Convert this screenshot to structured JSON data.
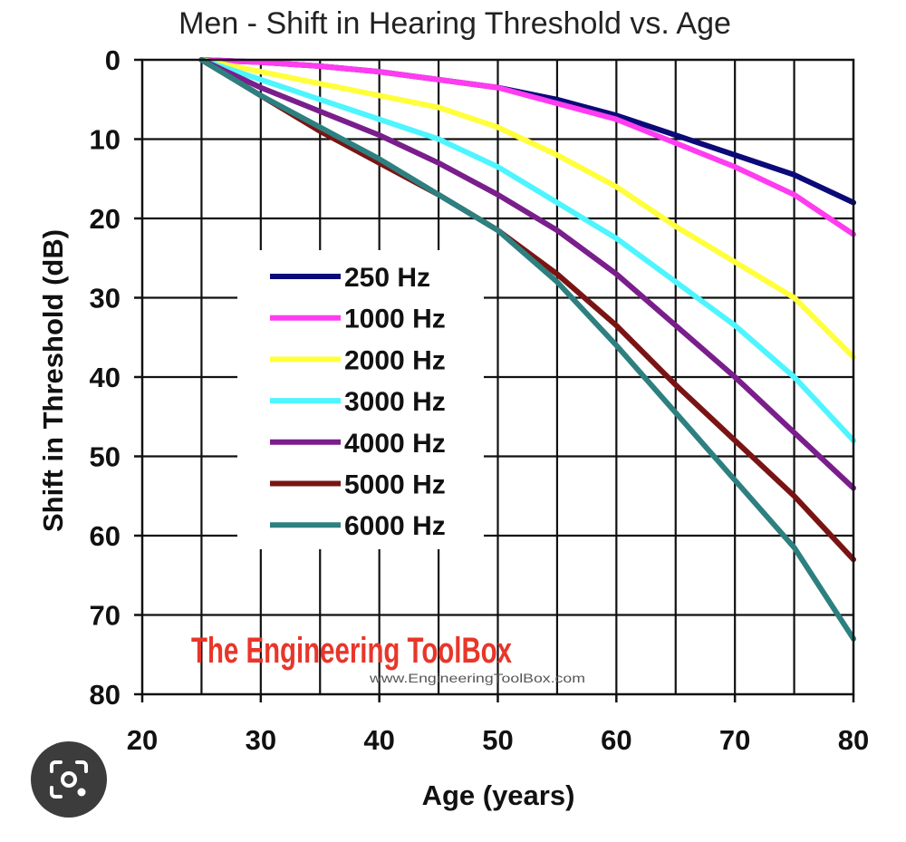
{
  "chart_data": {
    "type": "line",
    "title": "Men - Shift in Hearing Threshold vs. Age",
    "xlabel": "Age (years)",
    "ylabel": "Shift in Threshold (dB)",
    "xlim": [
      20,
      80
    ],
    "ylim": [
      0,
      80
    ],
    "y_inverted": true,
    "x_ticks": [
      "20",
      "30",
      "40",
      "50",
      "60",
      "70",
      "80"
    ],
    "y_ticks": [
      "0",
      "10",
      "20",
      "30",
      "40",
      "50",
      "60",
      "70",
      "80"
    ],
    "grid": true,
    "legend_position": "center-left",
    "series": [
      {
        "name": "250 Hz",
        "color": "#0a0a78",
        "x": [
          25,
          30,
          35,
          40,
          45,
          50,
          55,
          60,
          65,
          70,
          75,
          80
        ],
        "y": [
          0,
          0.3,
          0.8,
          1.5,
          2.5,
          3.5,
          5,
          7,
          9.5,
          12,
          14.5,
          18
        ]
      },
      {
        "name": "1000 Hz",
        "color": "#ff3cf0",
        "x": [
          25,
          30,
          35,
          40,
          45,
          50,
          55,
          60,
          65,
          70,
          75,
          80
        ],
        "y": [
          0,
          0.3,
          0.8,
          1.5,
          2.5,
          3.5,
          5.5,
          7.5,
          10.5,
          13.5,
          17,
          22
        ]
      },
      {
        "name": "2000 Hz",
        "color": "#ffff3c",
        "x": [
          25,
          30,
          35,
          40,
          45,
          50,
          55,
          60,
          65,
          70,
          75,
          80
        ],
        "y": [
          0,
          1.5,
          3,
          4.5,
          6,
          8.5,
          12,
          16,
          21,
          25.5,
          30,
          37.5
        ]
      },
      {
        "name": "3000 Hz",
        "color": "#4ef5ff",
        "x": [
          25,
          30,
          35,
          40,
          45,
          50,
          55,
          60,
          65,
          70,
          75,
          80
        ],
        "y": [
          0,
          2.5,
          5,
          7.5,
          10,
          13.5,
          18,
          22.5,
          28,
          33.5,
          40,
          48
        ]
      },
      {
        "name": "4000 Hz",
        "color": "#7a1e8c",
        "x": [
          25,
          30,
          35,
          40,
          45,
          50,
          55,
          60,
          65,
          70,
          75,
          80
        ],
        "y": [
          0,
          3.5,
          6.5,
          9.5,
          13,
          17,
          21.5,
          27,
          33.5,
          40,
          47,
          54
        ]
      },
      {
        "name": "5000 Hz",
        "color": "#7a1414",
        "x": [
          25,
          30,
          35,
          40,
          45,
          50,
          55,
          60,
          65,
          70,
          75,
          80
        ],
        "y": [
          0,
          4.5,
          9,
          13,
          17,
          21.5,
          27,
          33.5,
          41,
          48,
          55,
          63
        ]
      },
      {
        "name": "6000 Hz",
        "color": "#2e8080",
        "x": [
          25,
          30,
          35,
          40,
          45,
          50,
          55,
          60,
          65,
          70,
          75,
          80
        ],
        "y": [
          0,
          4.5,
          8.5,
          12.5,
          17,
          21.5,
          28,
          36,
          44.5,
          53,
          61.5,
          73
        ]
      }
    ],
    "watermark": {
      "brand": "The Engineering ToolBox",
      "url": "www.EngineeringToolBox.com"
    }
  },
  "overlay": {
    "lens_icon": "camera-search-icon"
  }
}
